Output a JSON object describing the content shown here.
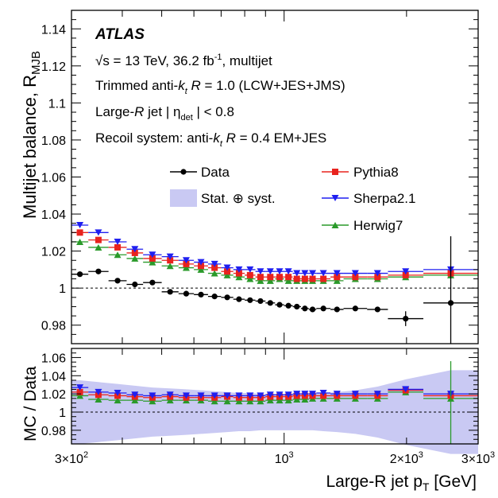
{
  "colors": {
    "data": "#000000",
    "pythia": "#e8231e",
    "sherpa": "#1f1ff0",
    "herwig": "#2a9a2a",
    "band": "#c9c9f3"
  },
  "chart_data": [
    {
      "type": "scatter",
      "panel": "top",
      "ylabel": "Multijet balance, R",
      "ylabel_sub": "MJB",
      "ylim": [
        0.97,
        1.15
      ],
      "x_scale": "log",
      "xlim": [
        300,
        3000
      ],
      "y_ticks": [
        "0.98",
        "1",
        "1.02",
        "1.04",
        "1.06",
        "1.08",
        "1.1",
        "1.12",
        "1.14"
      ],
      "reference_line": 1,
      "annotations": {
        "experiment": "ATLAS",
        "energy": "√s = 13 TeV, 36.2 fb",
        "energy_sup": "-1",
        "energy_tail": ", multijet",
        "line2_a": "Trimmed anti-",
        "line2_k": "k",
        "line2_t": "t",
        "line2_r": "R",
        "line2_tail": "= 1.0  (LCW+JES+JMS)",
        "line3_a": "Large-",
        "line3_r": "R",
        "line3_b": "jet",
        "line3_eta": "η",
        "line3_det": "det",
        "line3_tail": "< 0.8",
        "line4_a": "Recoil system: anti-",
        "line4_k": "k",
        "line4_t": "t",
        "line4_r": "R",
        "line4_tail": "= 0.4 EM+JES"
      },
      "legend": {
        "placement": "top-right",
        "data": "Data",
        "band": "Stat. ⊕ syst.",
        "pythia": "Pythia8",
        "sherpa": "Sherpa2.1",
        "herwig": "Herwig7"
      },
      "bins": [
        [
          300,
          330
        ],
        [
          330,
          370
        ],
        [
          370,
          410
        ],
        [
          410,
          450
        ],
        [
          450,
          500
        ],
        [
          500,
          550
        ],
        [
          550,
          600
        ],
        [
          600,
          650
        ],
        [
          650,
          700
        ],
        [
          700,
          750
        ],
        [
          750,
          800
        ],
        [
          800,
          850
        ],
        [
          850,
          900
        ],
        [
          900,
          950
        ],
        [
          950,
          1000
        ],
        [
          1000,
          1050
        ],
        [
          1050,
          1100
        ],
        [
          1100,
          1150
        ],
        [
          1150,
          1200
        ],
        [
          1200,
          1300
        ],
        [
          1300,
          1400
        ],
        [
          1400,
          1600
        ],
        [
          1600,
          1800
        ],
        [
          1800,
          2200
        ],
        [
          2200,
          3000
        ]
      ],
      "series": [
        {
          "name": "Data",
          "marker": "circle",
          "values": [
            1.0075,
            1.009,
            1.004,
            1.002,
            1.003,
            0.998,
            0.997,
            0.9965,
            0.9955,
            0.995,
            0.994,
            0.9935,
            0.993,
            0.992,
            0.991,
            0.9905,
            0.99,
            0.989,
            0.9885,
            0.989,
            0.9885,
            0.989,
            0.9885,
            0.9835,
            0.992
          ],
          "yerr": [
            0.001,
            0.001,
            0.001,
            0.001,
            0.001,
            0.001,
            0.001,
            0.001,
            0.001,
            0.001,
            0.001,
            0.001,
            0.001,
            0.001,
            0.001,
            0.001,
            0.001,
            0.001,
            0.001,
            0.001,
            0.001,
            0.001,
            0.001,
            0.004,
            0.036
          ]
        },
        {
          "name": "Pythia8",
          "marker": "square",
          "values": [
            1.03,
            1.026,
            1.022,
            1.019,
            1.016,
            1.015,
            1.013,
            1.012,
            1.011,
            1.009,
            1.008,
            1.007,
            1.006,
            1.006,
            1.006,
            1.006,
            1.005,
            1.005,
            1.005,
            1.005,
            1.006,
            1.006,
            1.006,
            1.007,
            1.008
          ]
        },
        {
          "name": "Sherpa2.1",
          "marker": "triangle-down",
          "values": [
            1.034,
            1.03,
            1.025,
            1.021,
            1.018,
            1.017,
            1.015,
            1.014,
            1.013,
            1.011,
            1.01,
            1.01,
            1.009,
            1.009,
            1.009,
            1.009,
            1.008,
            1.008,
            1.008,
            1.008,
            1.008,
            1.008,
            1.008,
            1.009,
            1.01
          ]
        },
        {
          "name": "Herwig7",
          "marker": "triangle-up",
          "values": [
            1.025,
            1.022,
            1.018,
            1.016,
            1.014,
            1.012,
            1.011,
            1.01,
            1.008,
            1.007,
            1.006,
            1.005,
            1.004,
            1.004,
            1.005,
            1.004,
            1.004,
            1.004,
            1.004,
            1.004,
            1.004,
            1.005,
            1.005,
            1.006,
            1.007
          ]
        }
      ]
    },
    {
      "type": "scatter",
      "panel": "ratio",
      "xlabel": "Large-R jet p",
      "xlabel_sub": "T",
      "xlabel_unit": "[GeV]",
      "ylabel": "MC / Data",
      "ylim": [
        0.965,
        1.07
      ],
      "x_scale": "log",
      "xlim": [
        300,
        3000
      ],
      "y_ticks": [
        "0.98",
        "1",
        "1.02",
        "1.04",
        "1.06"
      ],
      "x_tick_labels": [
        "3×10",
        "10",
        "2×10",
        "3×10"
      ],
      "x_tick_values": [
        300,
        1000,
        2000,
        3000
      ],
      "x_tick_exps": [
        "2",
        "3",
        "3",
        "3"
      ],
      "reference_line": 1,
      "band_half_width": [
        0.035,
        0.033,
        0.031,
        0.029,
        0.027,
        0.026,
        0.025,
        0.024,
        0.023,
        0.022,
        0.021,
        0.021,
        0.02,
        0.02,
        0.02,
        0.02,
        0.02,
        0.02,
        0.02,
        0.021,
        0.022,
        0.024,
        0.028,
        0.036,
        0.046
      ],
      "series": [
        {
          "name": "Pythia8",
          "values": [
            1.022,
            1.019,
            1.018,
            1.017,
            1.016,
            1.017,
            1.016,
            1.016,
            1.016,
            1.017,
            1.016,
            1.016,
            1.016,
            1.017,
            1.017,
            1.017,
            1.018,
            1.018,
            1.018,
            1.018,
            1.018,
            1.018,
            1.018,
            1.024,
            1.018
          ]
        },
        {
          "name": "Sherpa2.1",
          "values": [
            1.027,
            1.022,
            1.021,
            1.019,
            1.018,
            1.019,
            1.018,
            1.018,
            1.018,
            1.018,
            1.018,
            1.018,
            1.018,
            1.019,
            1.019,
            1.019,
            1.02,
            1.02,
            1.02,
            1.021,
            1.02,
            1.02,
            1.02,
            1.025,
            1.02
          ]
        },
        {
          "name": "Herwig7",
          "values": [
            1.018,
            1.014,
            1.013,
            1.013,
            1.012,
            1.013,
            1.013,
            1.013,
            1.012,
            1.012,
            1.012,
            1.012,
            1.012,
            1.013,
            1.013,
            1.013,
            1.014,
            1.014,
            1.015,
            1.015,
            1.015,
            1.015,
            1.015,
            1.022,
            1.015
          ]
        }
      ]
    }
  ]
}
